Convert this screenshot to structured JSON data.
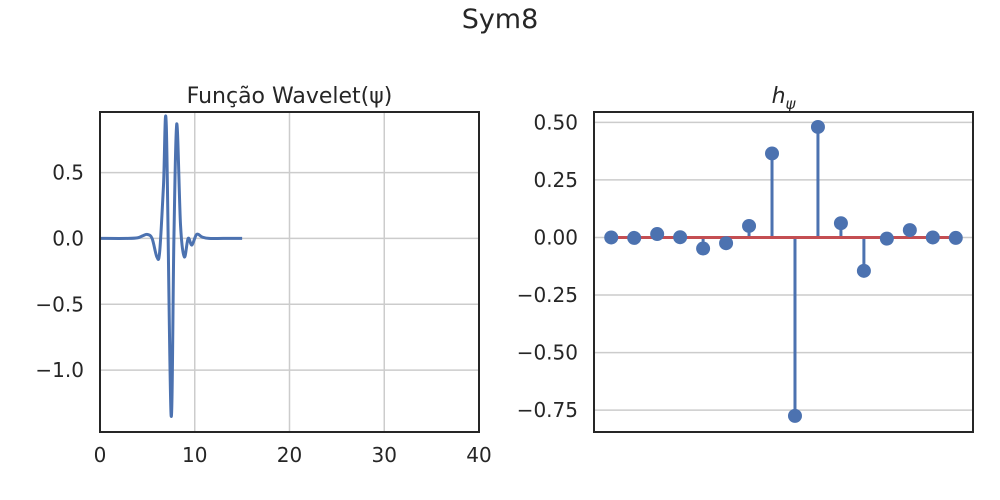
{
  "figure": {
    "suptitle": "Sym8"
  },
  "chart_data": [
    {
      "type": "line",
      "title": "Função Wavelet(ψ)",
      "xlabel": "",
      "ylabel": "",
      "xlim": [
        0,
        40
      ],
      "ylim": [
        -1.47,
        0.96
      ],
      "xticks": [
        0,
        10,
        20,
        30,
        40
      ],
      "xtick_labels": [
        "0",
        "10",
        "20",
        "30",
        "40"
      ],
      "yticks": [
        0.5,
        0.0,
        -0.5,
        -1.0
      ],
      "ytick_labels": [
        "0.5",
        "0.0",
        "−0.5",
        "−1.0"
      ],
      "grid": true,
      "color": "#4c72b0",
      "x": [
        0,
        3.0,
        4.0,
        4.5,
        5.0,
        5.5,
        6.0,
        6.3,
        6.7,
        7.0,
        7.5,
        7.8,
        8.1,
        8.5,
        8.9,
        9.3,
        9.7,
        10.2,
        10.8,
        11.5,
        13.0,
        15.0
      ],
      "y": [
        0,
        0,
        0.005,
        0.02,
        0.03,
        0.0,
        -0.14,
        -0.1,
        0.4,
        0.85,
        -1.34,
        0.0,
        0.87,
        0.1,
        -0.14,
        0.0,
        -0.05,
        0.03,
        0.01,
        0.0,
        0.0,
        0.0
      ]
    },
    {
      "type": "stem",
      "title": "h",
      "title_sub": "ψ",
      "xlim": [
        -0.75,
        15.75
      ],
      "ylim": [
        -0.845,
        0.545
      ],
      "xticks": [],
      "yticks": [
        0.5,
        0.25,
        0.0,
        -0.25,
        -0.5,
        -0.75
      ],
      "ytick_labels": [
        "0.50",
        "0.25",
        "0.00",
        "−0.25",
        "−0.50",
        "−0.75"
      ],
      "grid": true,
      "stem_color": "#4c72b0",
      "baseline_color": "#c44e52",
      "x": [
        0,
        1,
        2,
        3,
        4,
        5,
        6,
        7,
        8,
        9,
        10,
        11,
        12,
        13,
        14,
        15
      ],
      "y": [
        0.0,
        -0.002,
        0.015,
        0.001,
        -0.048,
        -0.025,
        0.05,
        0.365,
        -0.775,
        0.48,
        0.062,
        -0.145,
        -0.005,
        0.032,
        0.0,
        -0.002
      ]
    }
  ]
}
